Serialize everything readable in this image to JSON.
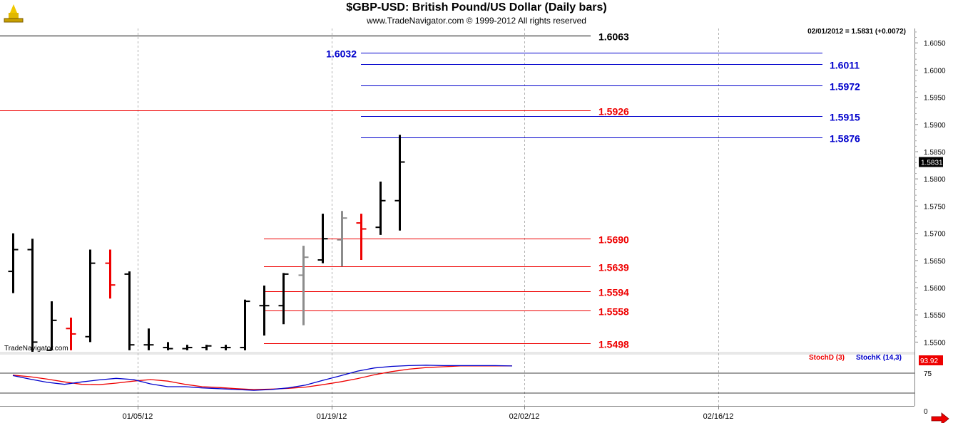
{
  "header": {
    "title": "$GBP-USD:  British Pound/US Dollar  (Daily bars)",
    "copyright": "www.TradeNavigator.com © 1999-2012 All rights reserved"
  },
  "chart_data": [
    {
      "type": "ohlc",
      "status": "02/01/2012 = 1.5831 (+0.0072)",
      "last_price_label": "1.5831",
      "watermark": "TradeNavigator.com",
      "ylim": [
        1.5485,
        1.6085
      ],
      "y_ticks": [
        "1.6050",
        "1.6000",
        "1.5950",
        "1.5900",
        "1.5850",
        "1.5800",
        "1.5750",
        "1.5700",
        "1.5650",
        "1.5600",
        "1.5550",
        "1.5500"
      ],
      "x_ticks": [
        "01/05/12",
        "01/19/12",
        "02/02/12",
        "02/16/12"
      ],
      "bars": [
        {
          "open": 1.563,
          "high": 1.57,
          "low": 1.559,
          "close": 1.567,
          "color": "black"
        },
        {
          "open": 1.567,
          "high": 1.569,
          "low": 1.547,
          "close": 1.55,
          "color": "black"
        },
        {
          "open": 1.5485,
          "high": 1.5575,
          "low": 1.5485,
          "close": 1.554,
          "color": "black"
        },
        {
          "open": 1.5525,
          "high": 1.5545,
          "low": 1.5485,
          "close": 1.5515,
          "color": "red"
        },
        {
          "open": 1.551,
          "high": 1.567,
          "low": 1.55,
          "close": 1.5645,
          "color": "black"
        },
        {
          "open": 1.5645,
          "high": 1.567,
          "low": 1.558,
          "close": 1.5605,
          "color": "red"
        },
        {
          "open": 1.5625,
          "high": 1.563,
          "low": 1.5485,
          "close": 1.5495,
          "color": "black"
        },
        {
          "open": 1.5495,
          "high": 1.5525,
          "low": 1.5485,
          "close": 1.5495,
          "color": "black"
        },
        {
          "open": 1.549,
          "high": 1.55,
          "low": 1.5485,
          "close": 1.5488,
          "color": "black"
        },
        {
          "open": 1.5488,
          "high": 1.5495,
          "low": 1.5485,
          "close": 1.549,
          "color": "black"
        },
        {
          "open": 1.549,
          "high": 1.5495,
          "low": 1.5485,
          "close": 1.5493,
          "color": "black"
        },
        {
          "open": 1.549,
          "high": 1.5495,
          "low": 1.5485,
          "close": 1.549,
          "color": "black"
        },
        {
          "open": 1.549,
          "high": 1.5578,
          "low": 1.5485,
          "close": 1.5575,
          "color": "black"
        },
        {
          "open": 1.5567,
          "high": 1.5604,
          "low": 1.5512,
          "close": 1.5567,
          "color": "black"
        },
        {
          "open": 1.5567,
          "high": 1.5627,
          "low": 1.5533,
          "close": 1.5625,
          "color": "black"
        },
        {
          "open": 1.5623,
          "high": 1.5677,
          "low": 1.5531,
          "close": 1.5656,
          "color": "gray"
        },
        {
          "open": 1.5651,
          "high": 1.5736,
          "low": 1.5645,
          "close": 1.569,
          "color": "black"
        },
        {
          "open": 1.5688,
          "high": 1.5741,
          "low": 1.5639,
          "close": 1.5728,
          "color": "gray"
        },
        {
          "open": 1.5719,
          "high": 1.5736,
          "low": 1.5651,
          "close": 1.5708,
          "color": "red"
        },
        {
          "open": 1.5711,
          "high": 1.5795,
          "low": 1.5697,
          "close": 1.576,
          "color": "black"
        },
        {
          "open": 1.576,
          "high": 1.5881,
          "low": 1.5705,
          "close": 1.5831,
          "color": "black"
        }
      ],
      "levels": [
        {
          "value": 1.6063,
          "label": "1.6063",
          "color": "#000000",
          "label_side": "right-inner",
          "extent": "full"
        },
        {
          "value": 1.6032,
          "label": "1.6032",
          "color": "#0000cc",
          "label_side": "left",
          "extent": "partial"
        },
        {
          "value": 1.6011,
          "label": "1.6011",
          "color": "#0000cc",
          "label_side": "right-outer",
          "extent": "partial"
        },
        {
          "value": 1.5972,
          "label": "1.5972",
          "color": "#0000cc",
          "label_side": "right-outer",
          "extent": "partial"
        },
        {
          "value": 1.5926,
          "label": "1.5926",
          "color": "#ee0000",
          "label_side": "right-inner",
          "extent": "full"
        },
        {
          "value": 1.5915,
          "label": "1.5915",
          "color": "#0000cc",
          "label_side": "right-outer",
          "extent": "partial"
        },
        {
          "value": 1.5876,
          "label": "1.5876",
          "color": "#0000cc",
          "label_side": "right-outer",
          "extent": "partial"
        },
        {
          "value": 1.569,
          "label": "1.5690",
          "color": "#ee0000",
          "label_side": "right-inner",
          "extent": "partial"
        },
        {
          "value": 1.5639,
          "label": "1.5639",
          "color": "#ee0000",
          "label_side": "right-inner",
          "extent": "partial"
        },
        {
          "value": 1.5594,
          "label": "1.5594",
          "color": "#ee0000",
          "label_side": "right-inner",
          "extent": "partial"
        },
        {
          "value": 1.5558,
          "label": "1.5558",
          "color": "#ee0000",
          "label_side": "right-inner",
          "extent": "partial"
        },
        {
          "value": 1.5498,
          "label": "1.5498",
          "color": "#ee0000",
          "label_side": "right-inner",
          "extent": "partial"
        }
      ]
    },
    {
      "type": "line",
      "series": [
        {
          "name": "StochD (3)",
          "color": "#ee0000",
          "values": [
            70,
            66,
            60,
            53,
            47,
            46,
            50,
            55,
            59,
            55,
            47,
            41,
            39,
            36,
            34,
            35,
            37,
            40,
            46,
            53,
            61,
            71,
            79,
            85,
            89,
            91,
            93,
            93,
            93,
            93
          ]
        },
        {
          "name": "StochK (14,3)",
          "color": "#0000cc",
          "values": [
            69,
            60,
            52,
            47,
            53,
            58,
            62,
            59,
            48,
            41,
            41,
            38,
            36,
            34,
            32,
            34,
            38,
            45,
            57,
            68,
            80,
            88,
            92,
            94,
            95,
            94,
            94,
            94,
            94,
            93
          ]
        }
      ],
      "last_value_label": "93.92",
      "ylim": [
        0,
        100
      ],
      "y_ticks": [
        "75",
        "0"
      ]
    }
  ],
  "nav": {
    "arrow": "right-arrow-icon"
  }
}
